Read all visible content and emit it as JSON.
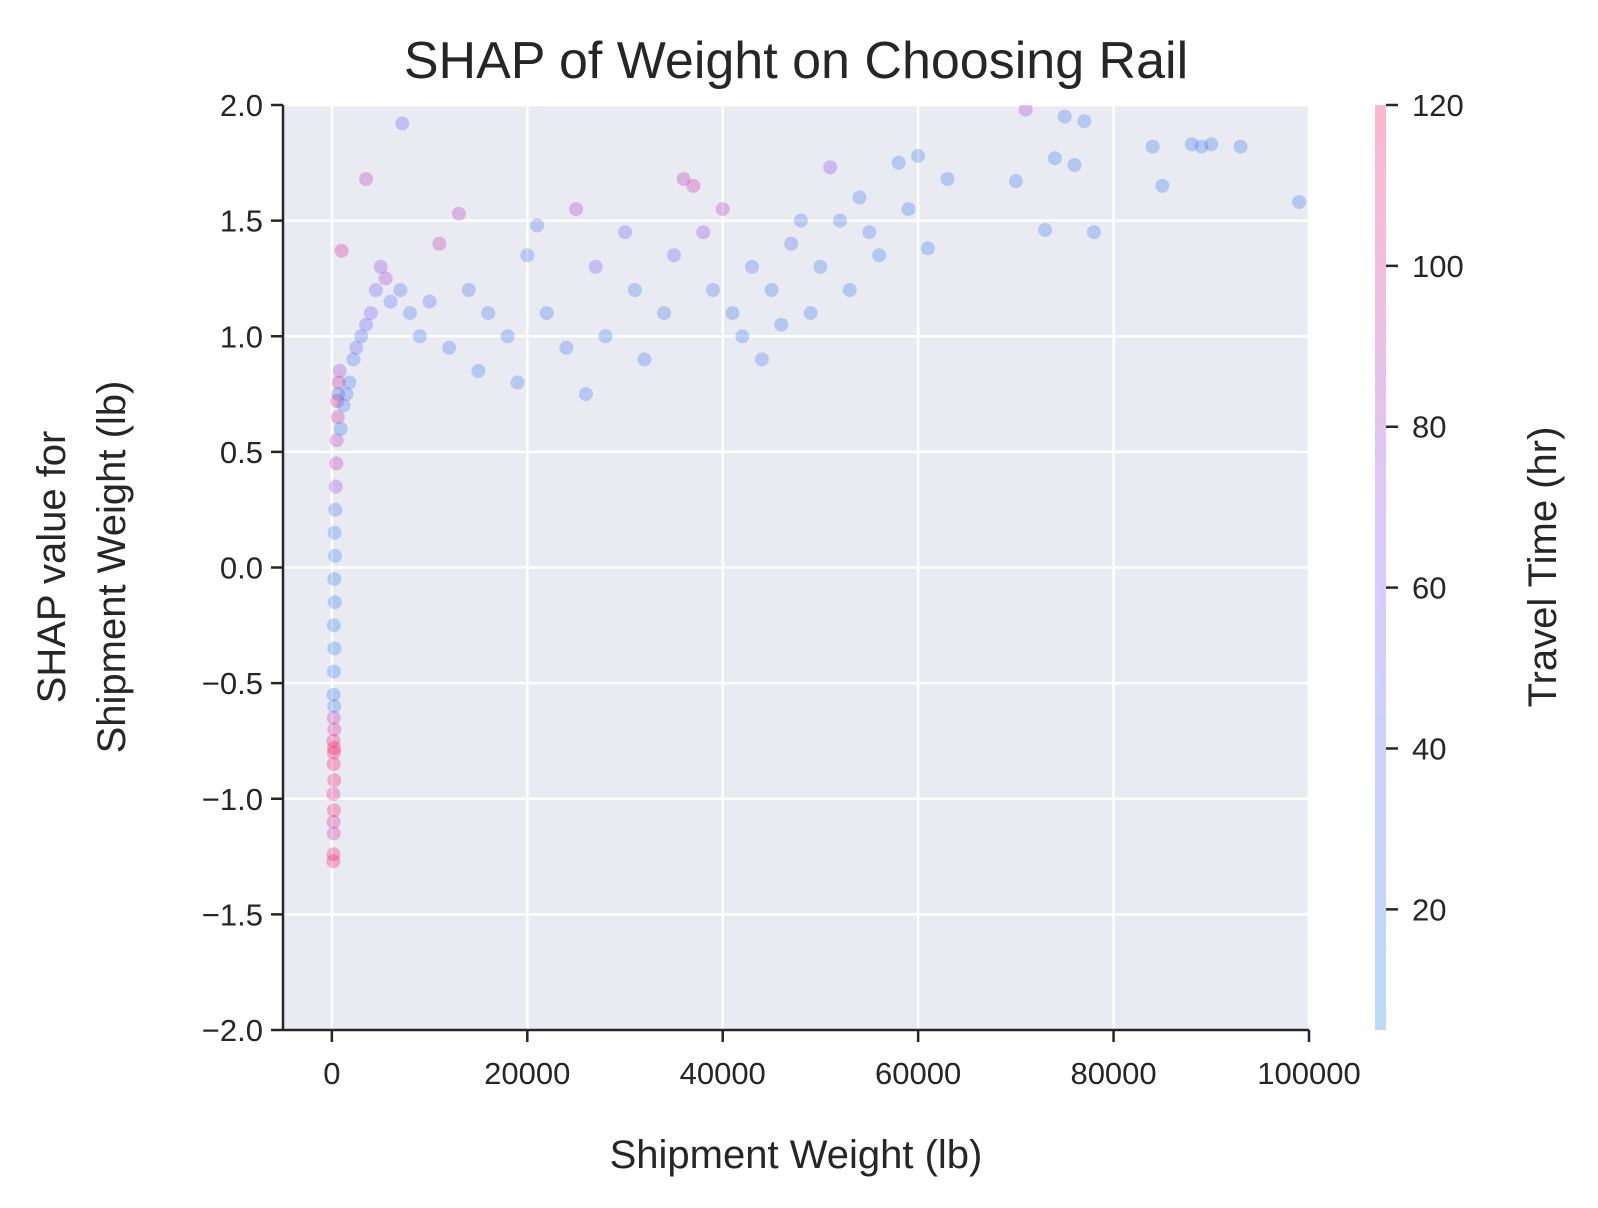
{
  "chart_data": {
    "type": "scatter",
    "title": "SHAP of Weight on Choosing Rail",
    "xlabel": "Shipment Weight (lb)",
    "ylabel_lines": [
      "SHAP value for",
      "Shipment Weight (lb)"
    ],
    "xlim": [
      -5000,
      100000
    ],
    "ylim": [
      -2.0,
      2.0
    ],
    "x_ticks": [
      0,
      20000,
      40000,
      60000,
      80000,
      100000
    ],
    "x_tick_labels": [
      "0",
      "20000",
      "40000",
      "60000",
      "80000",
      "100000"
    ],
    "y_ticks": [
      2.0,
      1.5,
      1.0,
      0.5,
      0.0,
      -0.5,
      -1.0,
      -1.5,
      -2.0
    ],
    "y_tick_labels": [
      "2.0",
      "1.5",
      "1.0",
      "0.5",
      "0.0",
      "−0.5",
      "−1.0",
      "−1.5",
      "−2.0"
    ],
    "grid": true,
    "background_color": "#eaeaf2",
    "colorbar": {
      "label": "Travel Time (hr)",
      "range": [
        5,
        120
      ],
      "ticks": [
        20,
        40,
        60,
        80,
        100,
        120
      ],
      "tick_labels": [
        "20",
        "40",
        "60",
        "80",
        "100",
        "120"
      ],
      "colors": [
        "#1e88e5",
        "#7c52ff",
        "#ff0d57"
      ]
    },
    "point_alpha": 0.3,
    "points": [
      [
        150,
        -1.27,
        115
      ],
      [
        170,
        -1.24,
        110
      ],
      [
        200,
        -1.15,
        95
      ],
      [
        180,
        -1.1,
        100
      ],
      [
        220,
        -1.05,
        110
      ],
      [
        160,
        -0.98,
        105
      ],
      [
        250,
        -0.92,
        112
      ],
      [
        190,
        -0.85,
        118
      ],
      [
        210,
        -0.8,
        120
      ],
      [
        230,
        -0.78,
        115
      ],
      [
        170,
        -0.75,
        108
      ],
      [
        260,
        -0.7,
        100
      ],
      [
        200,
        -0.65,
        90
      ],
      [
        240,
        -0.6,
        20
      ],
      [
        180,
        -0.55,
        18
      ],
      [
        220,
        -0.45,
        15
      ],
      [
        260,
        -0.35,
        12
      ],
      [
        200,
        -0.25,
        14
      ],
      [
        300,
        -0.15,
        16
      ],
      [
        250,
        -0.05,
        10
      ],
      [
        320,
        0.05,
        14
      ],
      [
        280,
        0.15,
        20
      ],
      [
        350,
        0.25,
        25
      ],
      [
        400,
        0.35,
        70
      ],
      [
        450,
        0.45,
        90
      ],
      [
        500,
        0.55,
        85
      ],
      [
        600,
        0.65,
        95
      ],
      [
        550,
        0.72,
        110
      ],
      [
        700,
        0.8,
        100
      ],
      [
        800,
        0.85,
        75
      ],
      [
        650,
        0.75,
        30
      ],
      [
        900,
        0.6,
        18
      ],
      [
        1200,
        0.7,
        20
      ],
      [
        1500,
        0.75,
        25
      ],
      [
        1800,
        0.8,
        15
      ],
      [
        2200,
        0.9,
        20
      ],
      [
        2500,
        0.95,
        50
      ],
      [
        3000,
        1.0,
        30
      ],
      [
        3500,
        1.05,
        40
      ],
      [
        4000,
        1.1,
        60
      ],
      [
        4500,
        1.2,
        55
      ],
      [
        5000,
        1.3,
        70
      ],
      [
        5500,
        1.25,
        80
      ],
      [
        6000,
        1.15,
        35
      ],
      [
        7000,
        1.2,
        25
      ],
      [
        8000,
        1.1,
        20
      ],
      [
        9000,
        1.0,
        18
      ],
      [
        10000,
        1.15,
        40
      ],
      [
        11000,
        1.4,
        90
      ],
      [
        12000,
        0.95,
        22
      ],
      [
        13000,
        1.53,
        85
      ],
      [
        14000,
        1.2,
        30
      ],
      [
        15000,
        0.85,
        16
      ],
      [
        16000,
        1.1,
        20
      ],
      [
        18000,
        1.0,
        15
      ],
      [
        19000,
        0.8,
        20
      ],
      [
        20000,
        1.35,
        30
      ],
      [
        21000,
        1.48,
        25
      ],
      [
        22000,
        1.1,
        18
      ],
      [
        24000,
        0.95,
        22
      ],
      [
        25000,
        1.55,
        80
      ],
      [
        26000,
        0.75,
        20
      ],
      [
        27000,
        1.3,
        60
      ],
      [
        28000,
        1.0,
        20
      ],
      [
        30000,
        1.45,
        50
      ],
      [
        31000,
        1.2,
        18
      ],
      [
        32000,
        0.9,
        15
      ],
      [
        34000,
        1.1,
        20
      ],
      [
        35000,
        1.35,
        55
      ],
      [
        36000,
        1.68,
        90
      ],
      [
        37000,
        1.65,
        95
      ],
      [
        38000,
        1.45,
        70
      ],
      [
        39000,
        1.2,
        20
      ],
      [
        40000,
        1.55,
        85
      ],
      [
        41000,
        1.1,
        18
      ],
      [
        42000,
        1.0,
        16
      ],
      [
        43000,
        1.3,
        30
      ],
      [
        44000,
        0.9,
        20
      ],
      [
        45000,
        1.2,
        15
      ],
      [
        46000,
        1.05,
        18
      ],
      [
        47000,
        1.4,
        40
      ],
      [
        48000,
        1.5,
        30
      ],
      [
        49000,
        1.1,
        18
      ],
      [
        50000,
        1.3,
        20
      ],
      [
        51000,
        1.73,
        70
      ],
      [
        52000,
        1.5,
        25
      ],
      [
        53000,
        1.2,
        18
      ],
      [
        54000,
        1.6,
        20
      ],
      [
        55000,
        1.45,
        20
      ],
      [
        56000,
        1.35,
        16
      ],
      [
        58000,
        1.75,
        20
      ],
      [
        59000,
        1.55,
        18
      ],
      [
        60000,
        1.78,
        20
      ],
      [
        61000,
        1.38,
        16
      ],
      [
        63000,
        1.68,
        18
      ],
      [
        70000,
        1.67,
        18
      ],
      [
        71000,
        1.98,
        80
      ],
      [
        73000,
        1.46,
        16
      ],
      [
        74000,
        1.77,
        18
      ],
      [
        75000,
        1.95,
        20
      ],
      [
        76000,
        1.74,
        18
      ],
      [
        77000,
        1.93,
        20
      ],
      [
        78000,
        1.45,
        16
      ],
      [
        84000,
        1.82,
        18
      ],
      [
        85000,
        1.65,
        16
      ],
      [
        88000,
        1.83,
        18
      ],
      [
        89000,
        1.82,
        20
      ],
      [
        90000,
        1.83,
        18
      ],
      [
        93000,
        1.82,
        18
      ],
      [
        99000,
        1.58,
        18
      ],
      [
        7200,
        1.92,
        50
      ],
      [
        3500,
        1.68,
        90
      ],
      [
        1000,
        1.37,
        100
      ]
    ]
  }
}
